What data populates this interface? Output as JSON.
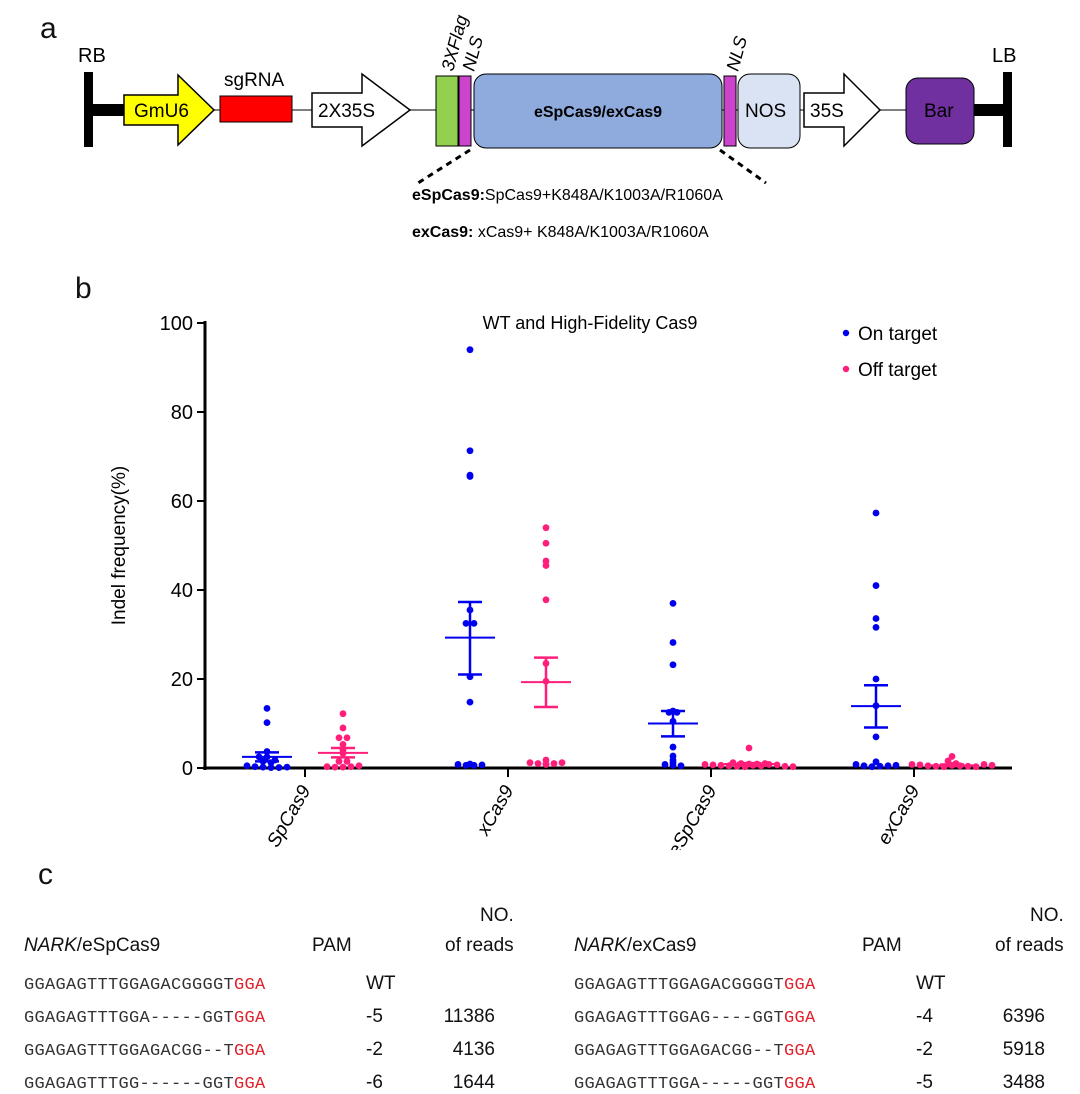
{
  "panel_a": {
    "label": "a",
    "rb": "RB",
    "lb": "LB",
    "gmu6": "GmU6",
    "sgrna": "sgRNA",
    "p2x35s": "2X35S",
    "flag": "3XFlag",
    "nls1": "NLS",
    "cas9": "eSpCas9/exCas9",
    "nls2": "NLS",
    "nos": "NOS",
    "p35s": "35S",
    "bar": "Bar",
    "note1_bold": "eSpCas9:",
    "note1": "SpCas9+K848A/K1003A/R1060A",
    "note2_bold": "exCas9:",
    "note2": " xCas9+ K848A/K1003A/R1060A",
    "colors": {
      "gmu6": "#ffff00",
      "sgrna": "#ff0000",
      "flag": "#92d050",
      "nls": "#cc44cc",
      "cas9": "#8faadc",
      "nos": "#dae3f3",
      "bar": "#7030a0"
    }
  },
  "panel_b": {
    "label": "b"
  },
  "chart_data": {
    "type": "scatter",
    "title": "WT and High-Fidelity Cas9",
    "ylabel": "Indel frequency(%)",
    "xlabel": "",
    "ylim": [
      0,
      100
    ],
    "yticks": [
      0,
      20,
      40,
      60,
      80,
      100
    ],
    "categories": [
      "SpCas9",
      "xCas9",
      "eSpCas9",
      "exCas9"
    ],
    "legend_position": "top-right",
    "grid": false,
    "series": [
      {
        "name": "On target",
        "color": "#0000ee",
        "values": [
          [
            13.4,
            10.2,
            3.7,
            2.5,
            2.5,
            1.8,
            1.5,
            1.2,
            0.5,
            0.3,
            0.2,
            0.1,
            0.1,
            0.2
          ],
          [
            94,
            71.3,
            65.8,
            65.5,
            35.5,
            32.5,
            32.5,
            20.5,
            14.8,
            0.8,
            0.6,
            0.6,
            0.7,
            0.9
          ],
          [
            37,
            28.2,
            23.2,
            12.8,
            12.5,
            12.5,
            10.5,
            4.7,
            2.7,
            1.8,
            1.2,
            0.8,
            0.6,
            0.5
          ],
          [
            57.3,
            41,
            33.6,
            31.6,
            20,
            14,
            7,
            0.8,
            0.5,
            0.3,
            0.4,
            0.5,
            0.6,
            1.4
          ]
        ],
        "mean": [
          2.5,
          29.3,
          10,
          13.9
        ],
        "err_low": [
          1.5,
          21,
          7.1,
          9.1
        ],
        "err_high": [
          3.5,
          37.3,
          12.8,
          18.6
        ]
      },
      {
        "name": "Off target",
        "color": "#ff1f7a",
        "values": [
          [
            12.2,
            9,
            6.8,
            6.8,
            5.3,
            4,
            3.3,
            1.5,
            1.5,
            0.3,
            0.2,
            0.2,
            0.3,
            0.5
          ],
          [
            54,
            50.5,
            46.5,
            45.5,
            37.8,
            23.5,
            19.5,
            1.2,
            1.0,
            0.8,
            0.9,
            1.0,
            1.2,
            1.8
          ],
          [
            4.5,
            1.2,
            1.0,
            0.9,
            0.8,
            0.7,
            0.6,
            0.5,
            0.4,
            0.3,
            0.6,
            0.5,
            0.8,
            0.9,
            1.0,
            0.7,
            0.4,
            0.3
          ],
          [
            2.6,
            1.6,
            1.0,
            0.8,
            0.7,
            0.5,
            0.4,
            0.3,
            0.6,
            0.5,
            0.4,
            0.3,
            0.8,
            0.6
          ]
        ],
        "mean": [
          3.4,
          19.3,
          0.9,
          0.6
        ],
        "err_low": [
          2.4,
          13.7,
          0.7,
          0.45
        ],
        "err_high": [
          4.5,
          24.8,
          1.1,
          0.8
        ]
      }
    ]
  },
  "panel_c": {
    "label": "c",
    "tables": [
      {
        "gene": "NARK",
        "title_rest": "/eSpCas9",
        "pam": "PAM",
        "reads_h1": "NO.",
        "reads_h2": "of reads",
        "rows": [
          {
            "seq": "GGAGAGTTTGGAGACGGGGT",
            "pam": "GGA",
            "indel": "WT",
            "reads": ""
          },
          {
            "seq": "GGAGAGTTTGGA-----GGT",
            "pam": "GGA",
            "indel": "-5",
            "reads": "11386"
          },
          {
            "seq": "GGAGAGTTTGGAGACGG--T",
            "pam": "GGA",
            "indel": "-2",
            "reads": "4136"
          },
          {
            "seq": "GGAGAGTTTGG------GGT",
            "pam": "GGA",
            "indel": "-6",
            "reads": "1644"
          }
        ]
      },
      {
        "gene": "NARK",
        "title_rest": "/exCas9",
        "pam": "PAM",
        "reads_h1": "NO.",
        "reads_h2": "of reads",
        "rows": [
          {
            "seq": "GGAGAGTTTGGAGACGGGGT",
            "pam": "GGA",
            "indel": "WT",
            "reads": ""
          },
          {
            "seq": "GGAGAGTTTGGAG----GGT",
            "pam": "GGA",
            "indel": "-4",
            "reads": "6396"
          },
          {
            "seq": "GGAGAGTTTGGAGACGG--T",
            "pam": "GGA",
            "indel": "-2",
            "reads": "5918"
          },
          {
            "seq": "GGAGAGTTTGGA-----GGT",
            "pam": "GGA",
            "indel": "-5",
            "reads": "3488"
          }
        ]
      }
    ]
  }
}
